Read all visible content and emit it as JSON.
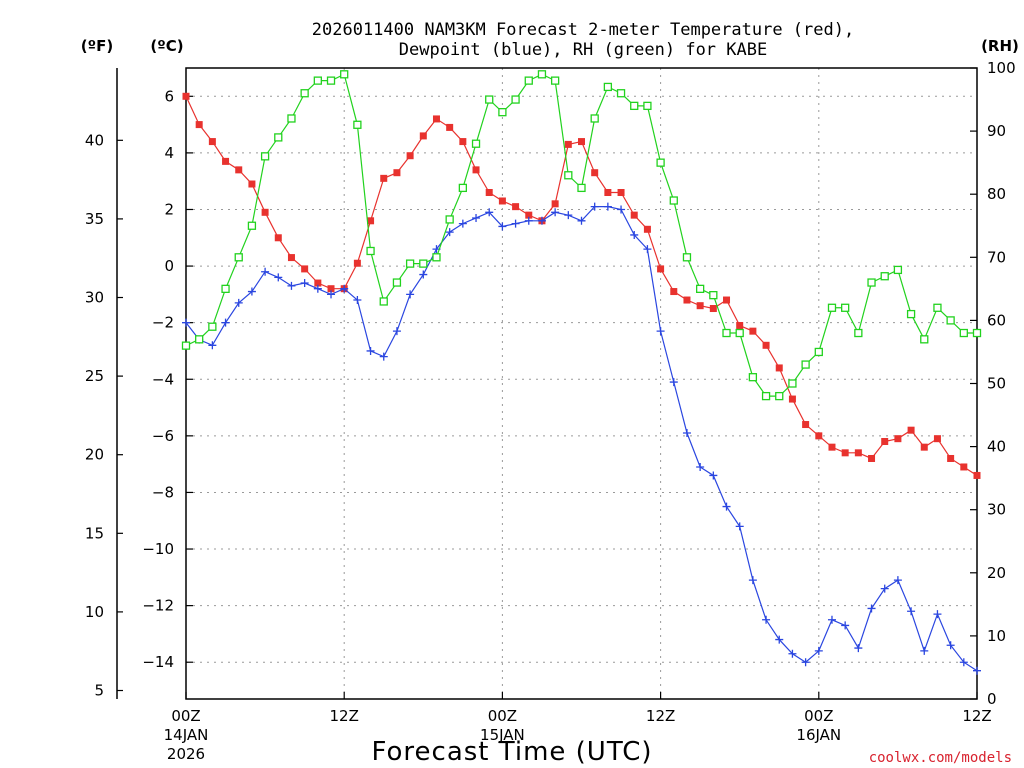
{
  "chart_data": {
    "type": "line",
    "title_line1": "2026011400 NAM3KM Forecast 2-meter Temperature (red),",
    "title_line2": "Dewpoint (blue), RH (green) for KABE",
    "xlabel": "Forecast Time (UTC)",
    "credit": "coolwx.com/models",
    "units": {
      "fahrenheit": "(ºF)",
      "celsius": "(ºC)",
      "rh": "(RH)"
    },
    "x_range_hours": [
      0,
      60
    ],
    "x_ticks": [
      {
        "hour": 0,
        "label": "00Z",
        "sub1": "14JAN",
        "sub2": "2026"
      },
      {
        "hour": 12,
        "label": "12Z",
        "sub1": "",
        "sub2": ""
      },
      {
        "hour": 24,
        "label": "00Z",
        "sub1": "15JAN",
        "sub2": ""
      },
      {
        "hour": 36,
        "label": "12Z",
        "sub1": "",
        "sub2": ""
      },
      {
        "hour": 48,
        "label": "00Z",
        "sub1": "16JAN",
        "sub2": ""
      },
      {
        "hour": 60,
        "label": "12Z",
        "sub1": "",
        "sub2": ""
      }
    ],
    "y_celsius_range": [
      -15.3,
      7.0
    ],
    "y_celsius_ticks": [
      "6",
      "4",
      "2",
      "0",
      "−2",
      "−4",
      "−6",
      "−8",
      "−10",
      "−12",
      "−14"
    ],
    "y_fahrenheit_ticks": [
      "40",
      "35",
      "30",
      "25",
      "20",
      "15",
      "10",
      "5"
    ],
    "y_rh_range": [
      0,
      100
    ],
    "y_rh_ticks": [
      "100",
      "90",
      "80",
      "70",
      "60",
      "50",
      "40",
      "30",
      "20",
      "10",
      "0"
    ],
    "colors": {
      "temperature": "#e8322e",
      "dewpoint": "#2a46e0",
      "rh": "#22d21e"
    },
    "series": [
      {
        "name": "Temperature",
        "unit": "C",
        "values": [
          6.0,
          5.0,
          4.4,
          3.7,
          3.4,
          2.9,
          1.9,
          1.0,
          0.3,
          -0.1,
          -0.6,
          -0.8,
          -0.8,
          0.1,
          1.6,
          3.1,
          3.3,
          3.9,
          4.6,
          5.2,
          4.9,
          4.4,
          3.4,
          2.6,
          2.3,
          2.1,
          1.8,
          1.6,
          2.2,
          4.3,
          4.4,
          3.3,
          2.6,
          2.6,
          1.8,
          1.3,
          -0.1,
          -0.9,
          -1.2,
          -1.4,
          -1.5,
          -1.2,
          -2.1,
          -2.3,
          -2.8,
          -3.6,
          -4.7,
          -5.6,
          -6.0,
          -6.4,
          -6.6,
          -6.6,
          -6.8,
          -6.2,
          -6.1,
          -5.8,
          -6.4,
          -6.1,
          -6.8,
          -7.1,
          -7.4
        ]
      },
      {
        "name": "Dewpoint",
        "unit": "C",
        "values": [
          -2.0,
          -2.6,
          -2.8,
          -2.0,
          -1.3,
          -0.9,
          -0.2,
          -0.4,
          -0.7,
          -0.6,
          -0.8,
          -1.0,
          -0.8,
          -1.2,
          -3.0,
          -3.2,
          -2.3,
          -1.0,
          -0.3,
          0.6,
          1.2,
          1.5,
          1.7,
          1.9,
          1.4,
          1.5,
          1.6,
          1.6,
          1.9,
          1.8,
          1.6,
          2.1,
          2.1,
          2.0,
          1.1,
          0.6,
          -2.3,
          -4.1,
          -5.9,
          -7.1,
          -7.4,
          -8.5,
          -9.2,
          -11.1,
          -12.5,
          -13.2,
          -13.7,
          -14.0,
          -13.6,
          -12.5,
          -12.7,
          -13.5,
          -12.1,
          -11.4,
          -11.1,
          -12.2,
          -13.6,
          -12.3,
          -13.4,
          -14.0,
          -14.3
        ]
      },
      {
        "name": "RH",
        "unit": "%",
        "values": [
          56,
          57,
          59,
          65,
          70,
          75,
          86,
          89,
          92,
          96,
          98,
          98,
          99,
          91,
          71,
          63,
          66,
          69,
          69,
          70,
          76,
          81,
          88,
          95,
          93,
          95,
          98,
          99,
          98,
          83,
          81,
          92,
          97,
          96,
          94,
          94,
          85,
          79,
          70,
          65,
          64,
          58,
          58,
          51,
          48,
          48,
          50,
          53,
          55,
          62,
          62,
          58,
          66,
          67,
          68,
          61,
          57,
          62,
          60,
          58,
          58
        ]
      }
    ]
  }
}
